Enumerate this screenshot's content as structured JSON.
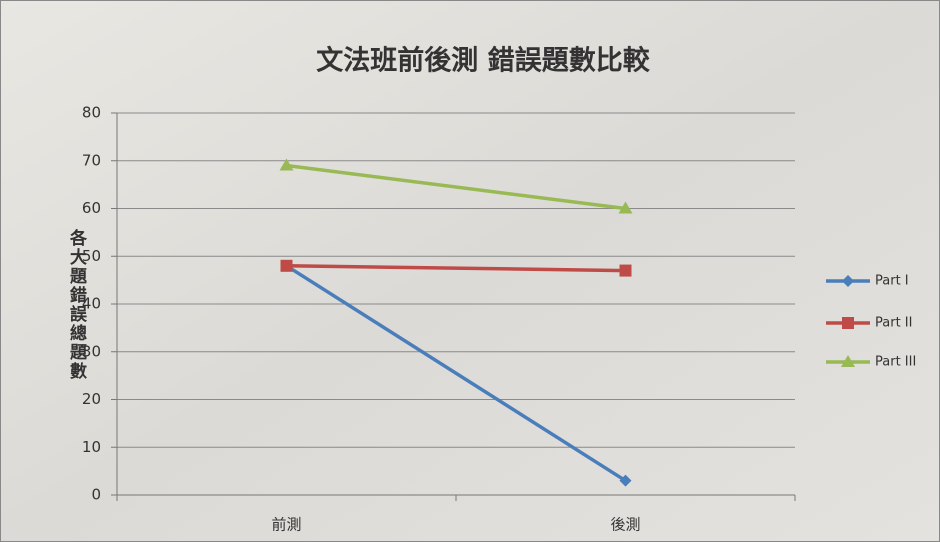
{
  "chart_data": {
    "type": "line",
    "title": "文法班前後測 錯誤題數比較",
    "y_label": "各大題錯誤總題數",
    "categories": [
      "前測",
      "後測"
    ],
    "series": [
      {
        "name": "Part I",
        "color": "#4a7ebb",
        "marker": "diamond",
        "values": [
          48,
          3
        ]
      },
      {
        "name": "Part II",
        "color": "#be4b48",
        "marker": "square",
        "values": [
          48,
          47
        ]
      },
      {
        "name": "Part III",
        "color": "#98b954",
        "marker": "triangle",
        "values": [
          69,
          60
        ]
      }
    ],
    "ylim": [
      0,
      80
    ],
    "yticks": [
      0,
      10,
      20,
      30,
      40,
      50,
      60,
      70,
      80
    ],
    "grid": true,
    "legend": "right"
  }
}
